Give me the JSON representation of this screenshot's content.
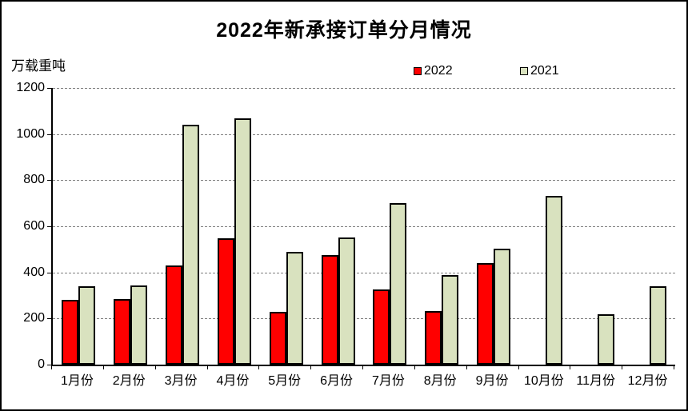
{
  "figure": {
    "title": "2022年新承接订单分月情况",
    "unit_label": "万载重吨"
  },
  "legend": [
    {
      "label": "2022",
      "color": "#ff0000"
    },
    {
      "label": "2021",
      "color": "#d9e2bf"
    }
  ],
  "chart_data": {
    "type": "bar",
    "title": "2022年新承接订单分月情况",
    "ylabel": "万载重吨",
    "categories": [
      "1月份",
      "2月份",
      "3月份",
      "4月份",
      "5月份",
      "6月份",
      "7月份",
      "8月份",
      "9月份",
      "10月份",
      "11月份",
      "12月份"
    ],
    "series": [
      {
        "name": "2022",
        "color": "#ff0000",
        "values": [
          281,
          283,
          430,
          548,
          228,
          476,
          326,
          232,
          440,
          null,
          null,
          null
        ]
      },
      {
        "name": "2021",
        "color": "#d9e2bf",
        "values": [
          339,
          342,
          1040,
          1068,
          488,
          550,
          700,
          390,
          502,
          731,
          218,
          341
        ]
      }
    ],
    "ylim": [
      0,
      1200
    ],
    "ytick_interval": 200,
    "ytick_labels": [
      "0",
      "200",
      "400",
      "600",
      "800",
      "1000",
      "1200"
    ],
    "grid": "horizontal-dashed",
    "legend_position": "top-center"
  },
  "colors": {
    "axis": "#000000",
    "gridline": "#808080",
    "bar_border": "#000000",
    "background": "#ffffff"
  }
}
